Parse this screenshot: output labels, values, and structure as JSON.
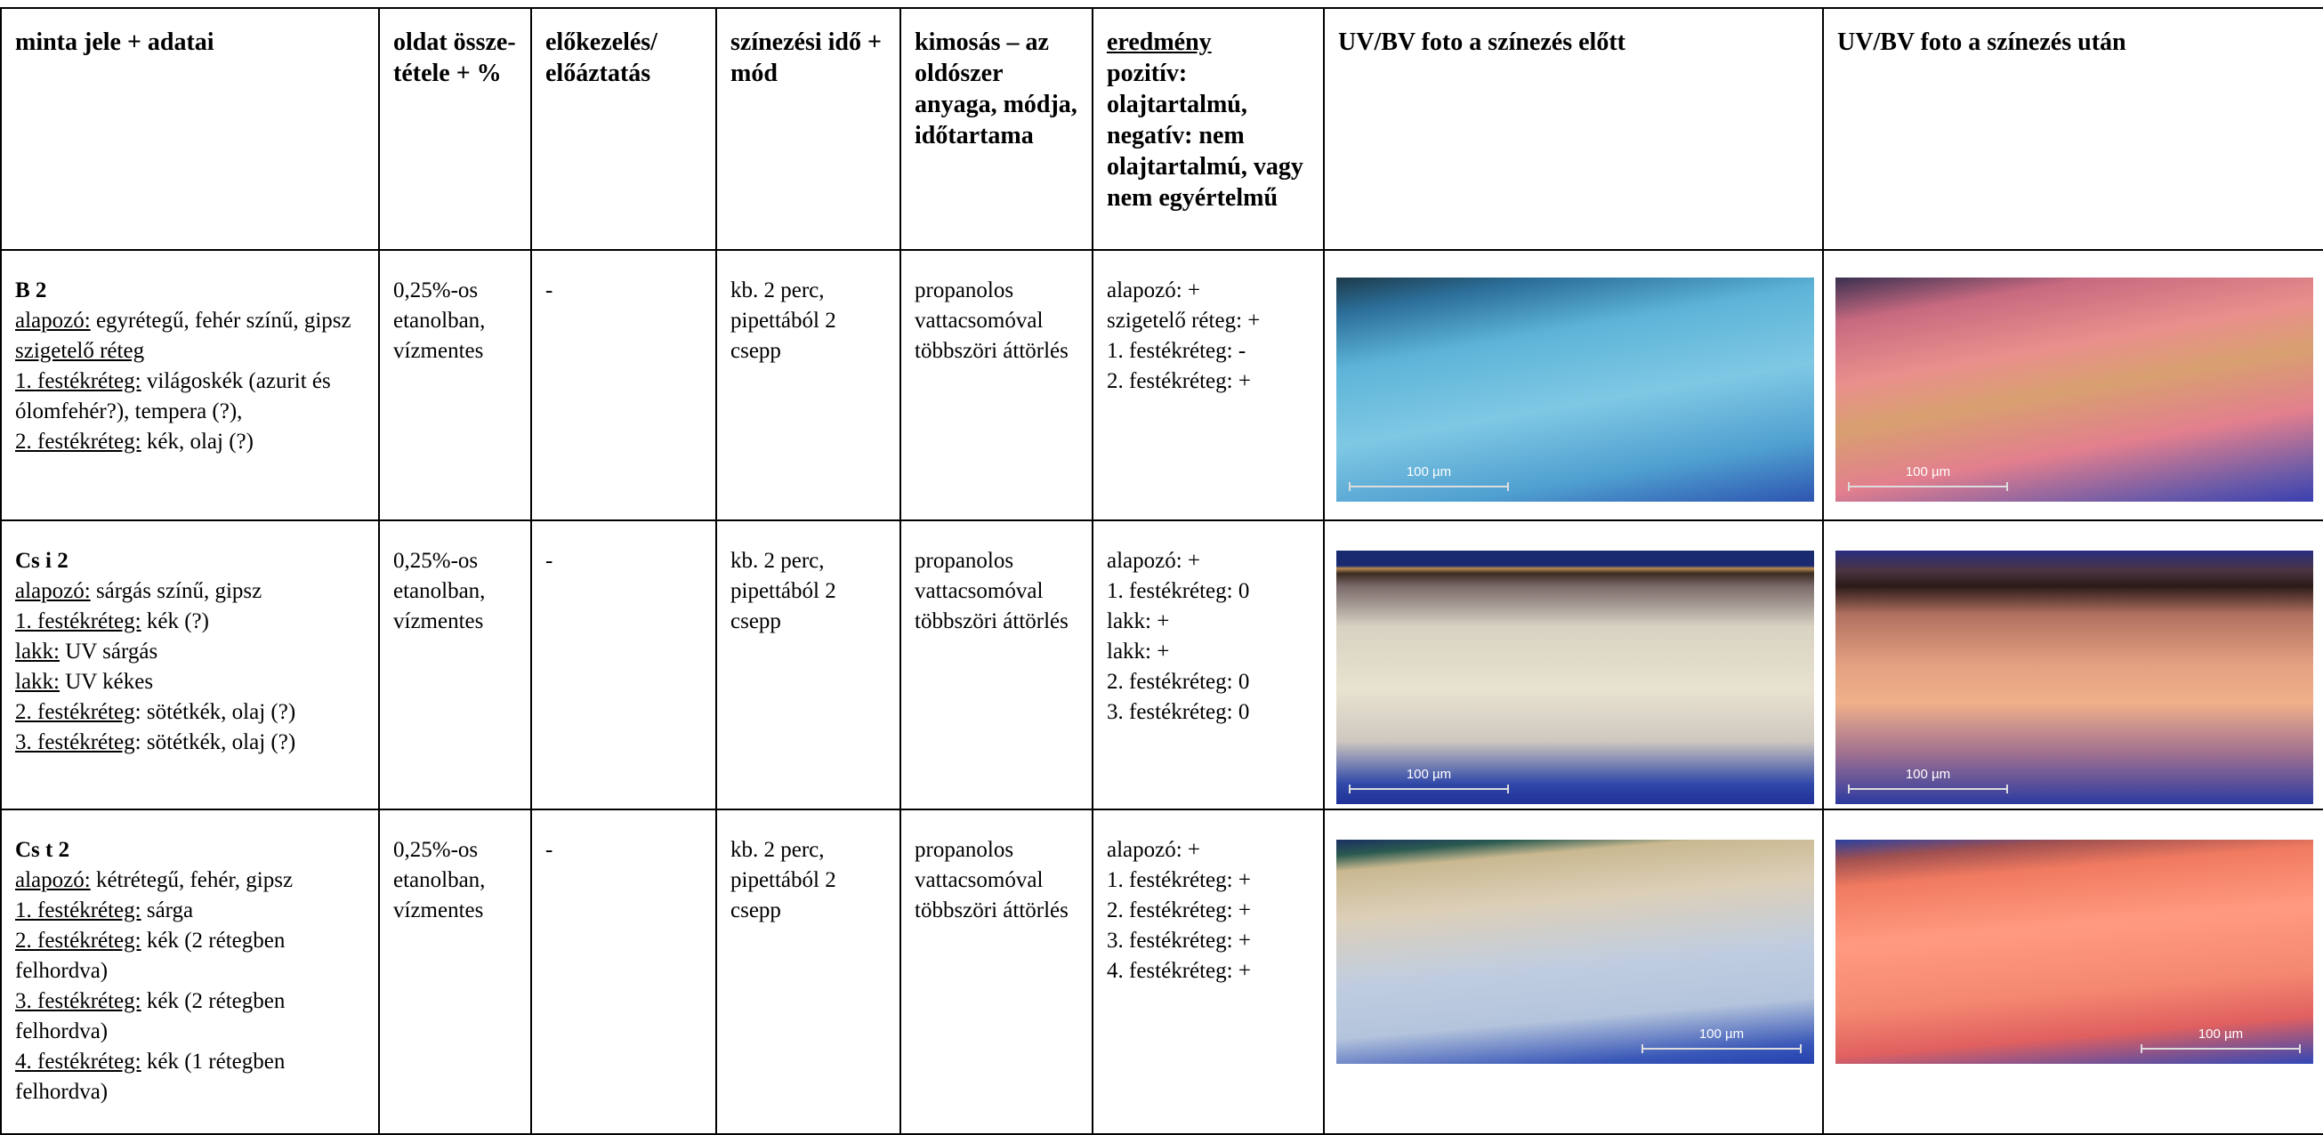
{
  "table": {
    "headers": [
      "minta jele + adatai",
      "oldat össze-tétele + %",
      "előkezelés/ előáztatás",
      "színezési idő + mód",
      "kimosás – az oldószer anyaga, módja, időtartama",
      {
        "title": "eredmény",
        "text": "pozitív: olajtartalmú, negatív: nem olajtartalmú, vagy nem egyértelmű"
      },
      "UV/BV foto a színezés előtt",
      "UV/BV foto a színezés után"
    ],
    "rows": [
      {
        "sample": {
          "id": "B 2",
          "layers": [
            {
              "label": "alapozó:",
              "text": " egyrétegű, fehér színű, gipsz"
            },
            {
              "label": "szigetelő réteg"
            },
            {
              "label": "1. festékréteg:",
              "text": " világoskék (azurit és ólomfehér?), tempera (?),"
            },
            {
              "label": "2. festékréteg:",
              "text": " kék, olaj (?)"
            }
          ]
        },
        "solution": "0,25%-os etanolban, vízmentes",
        "pretreatment": "-",
        "time": "kb. 2 perc, pipettából 2 csepp",
        "rinse": "propanolos vattacsomóval többszöri áttörlés",
        "result": [
          "alapozó: +",
          "szigetelő réteg: +",
          "1. festékréteg: -",
          "2. festékréteg: +"
        ],
        "scale_before": "100 µm",
        "scale_after": "100 µm"
      },
      {
        "sample": {
          "id": "Cs i 2",
          "layers": [
            {
              "label": "alapozó:",
              "text": " sárgás színű, gipsz"
            },
            {
              "label": "1. festékréteg:",
              "text": " kék (?)"
            },
            {
              "label": "lakk:",
              "text": " UV sárgás"
            },
            {
              "label": "lakk:",
              "text": " UV kékes"
            },
            {
              "label": "2. festékréteg",
              "text": ": sötétkék, olaj (?)"
            },
            {
              "label": "3. festékréteg",
              "text": ": sötétkék, olaj (?)"
            }
          ]
        },
        "solution": "0,25%-os etanolban, vízmentes",
        "pretreatment": "-",
        "time": "kb. 2 perc, pipettából 2 csepp",
        "rinse": "propanolos vattacsomóval többszöri áttörlés",
        "result": [
          "alapozó: +",
          "1. festékréteg: 0",
          "lakk: +",
          "lakk: +",
          "2. festékréteg: 0",
          "3. festékréteg: 0"
        ],
        "scale_before": "100 µm",
        "scale_after": "100 µm"
      },
      {
        "sample": {
          "id": "Cs t 2",
          "layers": [
            {
              "label": "alapozó:",
              "text": " kétrétegű, fehér, gipsz"
            },
            {
              "label": "1. festékréteg:",
              "text": " sárga"
            },
            {
              "label": "2. festékréteg:",
              "text": " kék (2 rétegben felhordva)"
            },
            {
              "label": "3. festékréteg:",
              "text": " kék (2 rétegben felhordva)"
            },
            {
              "label": "4. festékréteg:",
              "text": " kék (1 rétegben felhordva)"
            }
          ]
        },
        "solution": "0,25%-os etanolban, vízmentes",
        "pretreatment": "-",
        "time": "kb. 2 perc, pipettából 2 csepp",
        "rinse": "propanolos vattacsomóval többszöri áttörlés",
        "result": [
          "alapozó: +",
          "1. festékréteg: +",
          "2. festékréteg: +",
          "3. festékréteg: +",
          "4. festékréteg: +"
        ],
        "scale_before": "100 µm",
        "scale_after": "100 µm"
      }
    ]
  }
}
